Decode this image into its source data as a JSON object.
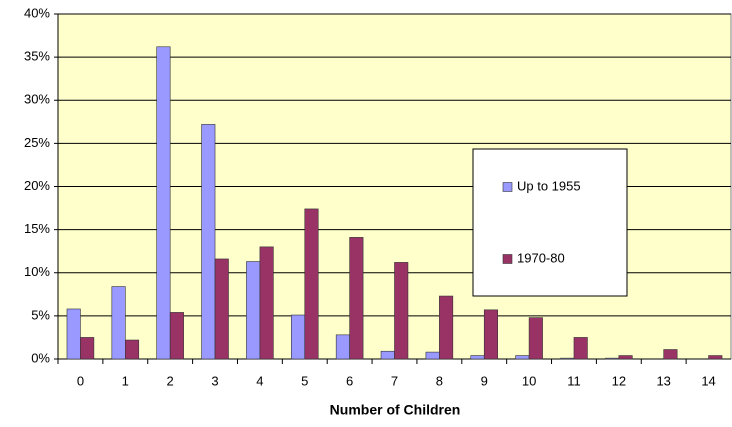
{
  "chart_data": {
    "type": "bar",
    "x_label": "Number of Children",
    "categories": [
      "0",
      "1",
      "2",
      "3",
      "4",
      "5",
      "6",
      "7",
      "8",
      "9",
      "10",
      "11",
      "12",
      "13",
      "14"
    ],
    "series": [
      {
        "name": "Up to 1955",
        "color": "#9999ff",
        "values": [
          5.8,
          8.4,
          36.2,
          27.2,
          11.3,
          5.1,
          2.8,
          0.9,
          0.8,
          0.4,
          0.4,
          0.1,
          0.1,
          0,
          0
        ]
      },
      {
        "name": "1970-80",
        "color": "#993366",
        "values": [
          2.5,
          2.2,
          5.4,
          11.6,
          13.0,
          17.4,
          14.1,
          11.2,
          7.3,
          5.7,
          4.8,
          2.5,
          0.4,
          1.1,
          0.4
        ]
      }
    ],
    "ylim": [
      0,
      40
    ],
    "yticks": [
      {
        "value": 0,
        "label": "0%"
      },
      {
        "value": 5,
        "label": "5%"
      },
      {
        "value": 10,
        "label": "10%"
      },
      {
        "value": 15,
        "label": "15%"
      },
      {
        "value": 20,
        "label": "20%"
      },
      {
        "value": 25,
        "label": "25%"
      },
      {
        "value": 30,
        "label": "30%"
      },
      {
        "value": 35,
        "label": "35%"
      },
      {
        "value": 40,
        "label": "40%"
      }
    ],
    "grid": true,
    "legend_position": "right",
    "background": "#ffffcc"
  }
}
